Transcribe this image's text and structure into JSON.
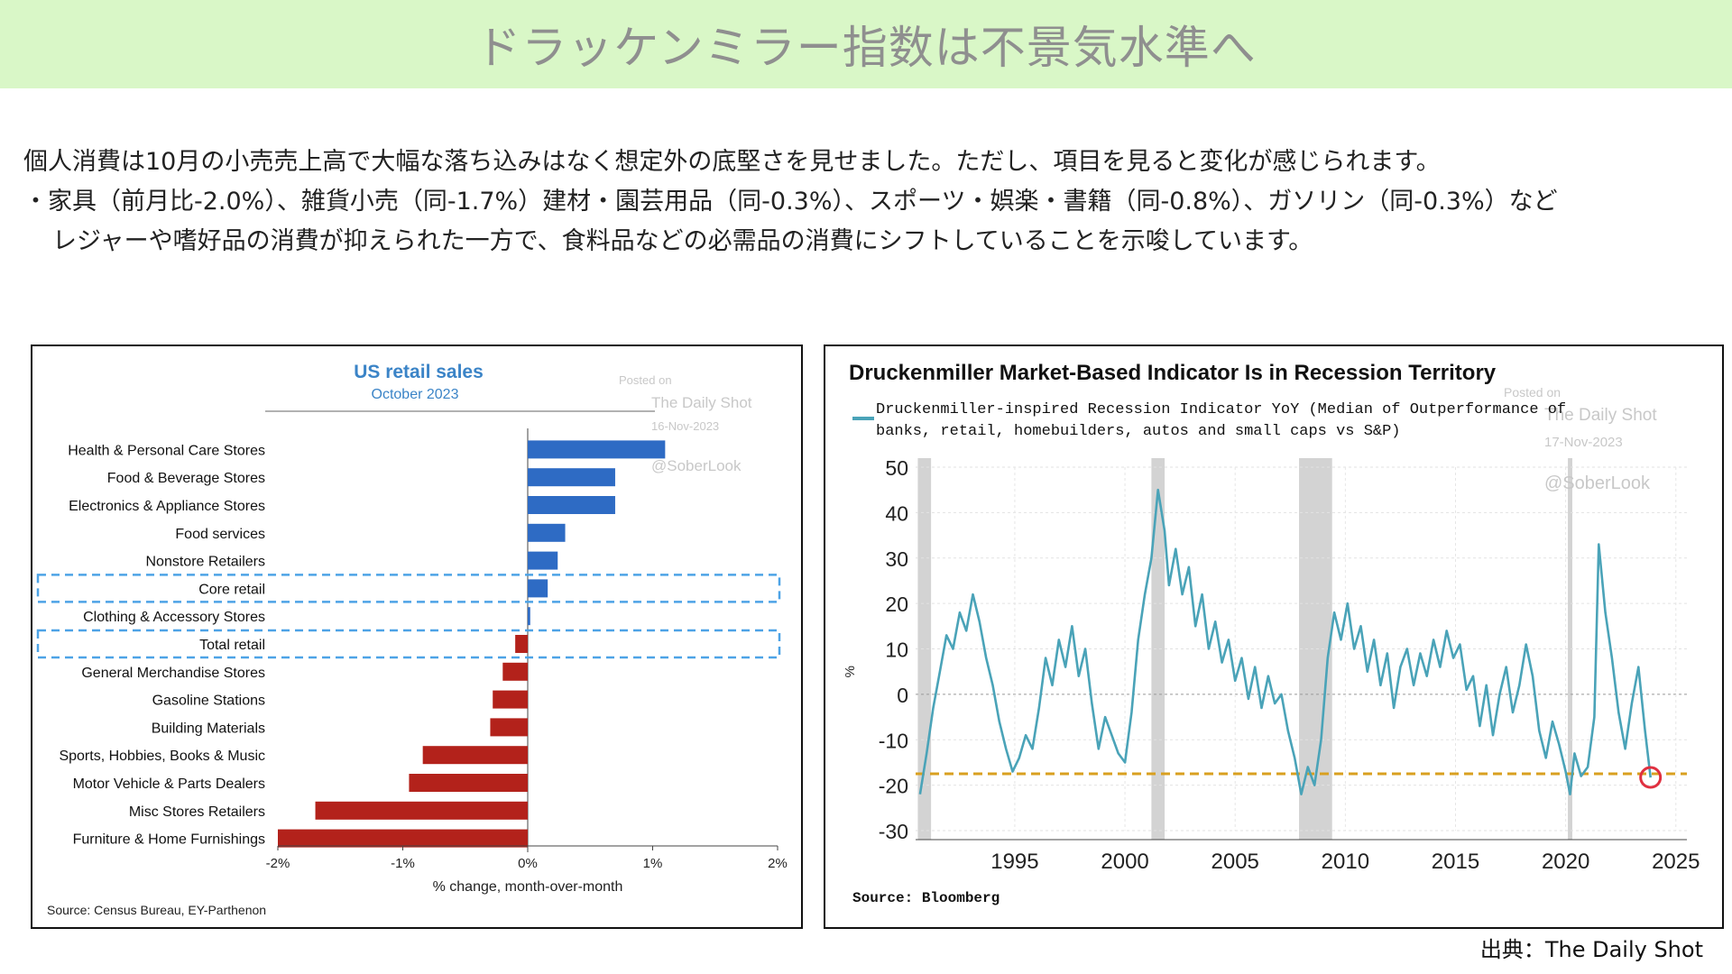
{
  "page": {
    "title": "ドラッケンミラー指数は不景気水準へ",
    "paragraph_1": "個人消費は10月の小売売上高で大幅な落ち込みはなく想定外の底堅さを見せました。ただし、項目を見ると変化が感じられます。",
    "paragraph_2": "・家具（前月比-2.0%）、雑貨小売（同-1.7%）建材・園芸用品（同-0.3%）、スポーツ・娯楽・書籍（同-0.8%）、ガソリン（同-0.3%）など",
    "paragraph_3": "レジャーや嗜好品の消費が抑えられた一方で、食料品などの必需品の消費にシフトしていることを示唆しています。",
    "source_note": "出典：The Daily Shot"
  },
  "chart_data": [
    {
      "type": "bar",
      "orientation": "horizontal",
      "title": "US retail sales",
      "subtitle": "October 2023",
      "xlabel": "% change, month-over-month",
      "xlim": [
        -2,
        2
      ],
      "xticks": [
        "-2%",
        "-1%",
        "0%",
        "1%",
        "2%"
      ],
      "xtick_values": [
        -2,
        -1,
        0,
        1,
        2
      ],
      "source": "Source: Census Bureau, EY-Parthenon",
      "watermark": [
        "Posted on",
        "The Daily Shot",
        "16-Nov-2023",
        "@SoberLook"
      ],
      "positive_color": "#2e6bc4",
      "negative_color": "#b3221b",
      "highlight_color": "#4da3e6",
      "highlighted": [
        "Core retail",
        "Total retail"
      ],
      "categories": [
        "Health & Personal Care Stores",
        "Food & Beverage Stores",
        "Electronics & Appliance Stores",
        "Food services",
        "Nonstore Retailers",
        "Core retail",
        "Clothing & Accessory Stores",
        "Total retail",
        "General Merchandise Stores",
        "Gasoline Stations",
        "Building Materials",
        "Sports, Hobbies, Books & Music",
        "Motor Vehicle & Parts Dealers",
        "Misc Stores Retailers",
        "Furniture & Home Furnishings"
      ],
      "values": [
        1.1,
        0.7,
        0.7,
        0.3,
        0.24,
        0.16,
        0.02,
        -0.1,
        -0.2,
        -0.28,
        -0.3,
        -0.84,
        -0.95,
        -1.7,
        -2.0
      ]
    },
    {
      "type": "line",
      "title": "Druckenmiller Market-Based Indicator Is in Recession Territory",
      "series_name": "Druckenmiller-inspired Recession Indicator YoY (Median of Outperformance of banks, retail, homebuilders, autos and small caps vs S&P)",
      "legend_line_1": "Druckenmiller-inspired Recession Indicator YoY (Median of Outperformance of",
      "legend_line_2": "banks, retail, homebuilders, autos and small caps vs S&P)",
      "ylabel": "%",
      "ylim": [
        -30,
        50
      ],
      "yticks": [
        "50",
        "40",
        "30",
        "20",
        "10",
        "0",
        "-10",
        "-20",
        "-30"
      ],
      "ytick_values": [
        50,
        40,
        30,
        20,
        10,
        0,
        -10,
        -20,
        -30
      ],
      "xlim": [
        1990.5,
        2025.5
      ],
      "xticks": [
        "1995",
        "2000",
        "2005",
        "2010",
        "2015",
        "2020",
        "2025"
      ],
      "xtick_values": [
        1995,
        2000,
        2005,
        2010,
        2015,
        2020,
        2025
      ],
      "source": "Source: Bloomberg",
      "watermark": [
        "Posted on",
        "The Daily Shot",
        "17-Nov-2023",
        "@SoberLook"
      ],
      "threshold_value": -17.5,
      "line_color": "#4aa3b8",
      "threshold_color": "#d9a020",
      "marker_color": "#e03040",
      "recessions": [
        [
          1990.6,
          1991.2
        ],
        [
          2001.2,
          2001.8
        ],
        [
          2007.9,
          2009.4
        ],
        [
          2020.1,
          2020.3
        ]
      ],
      "marker_point": [
        2023.85,
        -18.3
      ],
      "series": {
        "x": [
          1990.7,
          1991.0,
          1991.3,
          1991.6,
          1991.9,
          1992.2,
          1992.5,
          1992.8,
          1993.1,
          1993.4,
          1993.7,
          1994.0,
          1994.3,
          1994.6,
          1994.9,
          1995.2,
          1995.5,
          1995.8,
          1996.1,
          1996.4,
          1996.7,
          1997.0,
          1997.3,
          1997.6,
          1997.9,
          1998.2,
          1998.5,
          1998.8,
          1999.1,
          1999.4,
          1999.7,
          2000.0,
          2000.3,
          2000.6,
          2000.9,
          2001.2,
          2001.5,
          2001.8,
          2002.0,
          2002.3,
          2002.6,
          2002.9,
          2003.2,
          2003.5,
          2003.8,
          2004.1,
          2004.4,
          2004.7,
          2005.0,
          2005.3,
          2005.6,
          2005.9,
          2006.2,
          2006.5,
          2006.8,
          2007.1,
          2007.4,
          2007.7,
          2008.0,
          2008.3,
          2008.6,
          2008.9,
          2009.2,
          2009.5,
          2009.8,
          2010.1,
          2010.4,
          2010.7,
          2011.0,
          2011.3,
          2011.6,
          2011.9,
          2012.2,
          2012.5,
          2012.8,
          2013.1,
          2013.4,
          2013.7,
          2014.0,
          2014.3,
          2014.6,
          2014.9,
          2015.2,
          2015.5,
          2015.8,
          2016.1,
          2016.4,
          2016.7,
          2017.0,
          2017.3,
          2017.6,
          2017.9,
          2018.2,
          2018.5,
          2018.8,
          2019.1,
          2019.4,
          2019.7,
          2020.0,
          2020.2,
          2020.4,
          2020.7,
          2021.0,
          2021.3,
          2021.5,
          2021.8,
          2022.1,
          2022.4,
          2022.7,
          2023.0,
          2023.3,
          2023.6,
          2023.85
        ],
        "y": [
          -22,
          -13,
          -3,
          5,
          13,
          10,
          18,
          14,
          22,
          16,
          8,
          2,
          -6,
          -12,
          -17,
          -14,
          -9,
          -12,
          -3,
          8,
          2,
          12,
          6,
          15,
          4,
          10,
          -2,
          -12,
          -5,
          -9,
          -13,
          -15,
          -4,
          12,
          22,
          30,
          45,
          36,
          24,
          32,
          22,
          28,
          15,
          22,
          10,
          16,
          7,
          12,
          3,
          8,
          -1,
          6,
          -3,
          4,
          -2,
          0,
          -8,
          -14,
          -22,
          -16,
          -20,
          -10,
          8,
          18,
          12,
          20,
          10,
          15,
          5,
          12,
          2,
          9,
          -3,
          6,
          10,
          2,
          9,
          4,
          12,
          6,
          14,
          8,
          11,
          1,
          4,
          -7,
          2,
          -9,
          0,
          6,
          -4,
          2,
          11,
          4,
          -8,
          -14,
          -6,
          -11,
          -17,
          -22,
          -13,
          -18,
          -16,
          -5,
          33,
          18,
          8,
          -4,
          -12,
          -2,
          6,
          -8,
          -18.3
        ]
      }
    }
  ]
}
